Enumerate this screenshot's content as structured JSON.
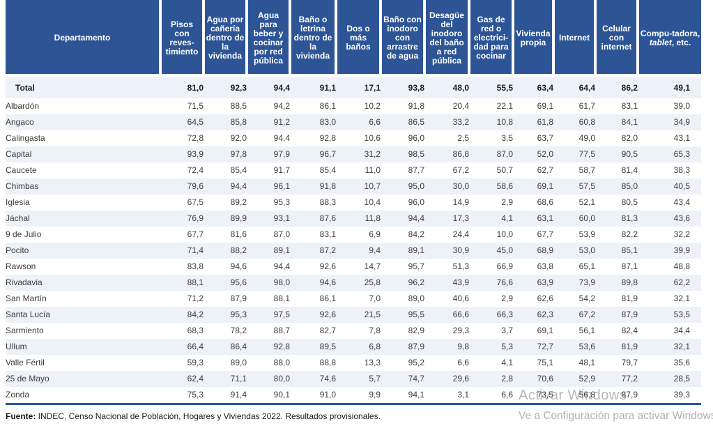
{
  "colors": {
    "header_bg": "#2D5596",
    "row_alt_bg": "#EDF1F8",
    "table_border": "#2A57A5",
    "watermark_gray": "#7A7A7A"
  },
  "table": {
    "columns": [
      {
        "label": "Departamento"
      },
      {
        "label": "Pisos con reves-timiento"
      },
      {
        "label": "Agua por cañería dentro de la vivienda"
      },
      {
        "label": "Agua para beber y cocinar por red pública"
      },
      {
        "label": "Baño o letrina dentro de la vivienda"
      },
      {
        "label": "Dos o más baños"
      },
      {
        "label": "Baño con inodoro con arrastre de agua"
      },
      {
        "label": "Desagüe del inodoro del baño a red pública"
      },
      {
        "label": "Gas de red o electrici-dad para cocinar"
      },
      {
        "label": "Vivienda propia"
      },
      {
        "label": "Internet"
      },
      {
        "label": "Celular con internet"
      },
      {
        "label_before": "Compu-tadora, ",
        "label_italic": "tablet",
        "label_after": ", etc."
      }
    ],
    "rows": [
      {
        "name": "Total",
        "bold": true,
        "values": [
          "81,0",
          "92,3",
          "94,4",
          "91,1",
          "17,1",
          "93,8",
          "48,0",
          "55,5",
          "63,4",
          "64,4",
          "86,2",
          "49,1"
        ]
      },
      {
        "name": "Albardón",
        "values": [
          "71,5",
          "88,5",
          "94,2",
          "86,1",
          "10,2",
          "91,8",
          "20,4",
          "22,1",
          "69,1",
          "61,7",
          "83,1",
          "39,0"
        ]
      },
      {
        "name": "Angaco",
        "values": [
          "64,5",
          "85,8",
          "91,2",
          "83,0",
          "6,6",
          "86,5",
          "33,2",
          "10,8",
          "61,8",
          "60,8",
          "84,1",
          "34,9"
        ]
      },
      {
        "name": "Calingasta",
        "values": [
          "72,8",
          "92,0",
          "94,4",
          "92,8",
          "10,6",
          "96,0",
          "2,5",
          "3,5",
          "63,7",
          "49,0",
          "82,0",
          "43,1"
        ]
      },
      {
        "name": "Capital",
        "values": [
          "93,9",
          "97,8",
          "97,9",
          "96,7",
          "31,2",
          "98,5",
          "86,8",
          "87,0",
          "52,0",
          "77,5",
          "90,5",
          "65,3"
        ]
      },
      {
        "name": "Caucete",
        "values": [
          "72,4",
          "85,4",
          "91,7",
          "85,4",
          "11,0",
          "87,7",
          "67,2",
          "50,7",
          "62,7",
          "58,7",
          "81,4",
          "38,3"
        ]
      },
      {
        "name": "Chimbas",
        "values": [
          "79,6",
          "94,4",
          "96,1",
          "91,8",
          "10,7",
          "95,0",
          "30,0",
          "58,6",
          "69,1",
          "57,5",
          "85,0",
          "40,5"
        ]
      },
      {
        "name": "Iglesia",
        "values": [
          "67,5",
          "89,2",
          "95,3",
          "88,3",
          "10,4",
          "96,0",
          "14,9",
          "2,9",
          "68,6",
          "52,1",
          "80,5",
          "43,4"
        ]
      },
      {
        "name": "Jáchal",
        "values": [
          "76,9",
          "89,9",
          "93,1",
          "87,6",
          "11,8",
          "94,4",
          "17,3",
          "4,1",
          "63,1",
          "60,0",
          "81,3",
          "43,6"
        ]
      },
      {
        "name": "9 de Julio",
        "values": [
          "67,7",
          "81,6",
          "87,0",
          "83,1",
          "6,9",
          "84,2",
          "24,4",
          "10,0",
          "67,7",
          "53,9",
          "82,2",
          "32,2"
        ]
      },
      {
        "name": "Pocito",
        "values": [
          "71,4",
          "88,2",
          "89,1",
          "87,2",
          "9,4",
          "89,1",
          "30,9",
          "45,0",
          "68,9",
          "53,0",
          "85,1",
          "39,9"
        ]
      },
      {
        "name": "Rawson",
        "values": [
          "83,8",
          "94,6",
          "94,4",
          "92,6",
          "14,7",
          "95,7",
          "51,3",
          "66,9",
          "63,8",
          "65,1",
          "87,1",
          "48,8"
        ]
      },
      {
        "name": "Rivadavia",
        "values": [
          "88,1",
          "95,6",
          "98,0",
          "94,6",
          "25,8",
          "96,2",
          "43,9",
          "76,6",
          "63,9",
          "73,9",
          "89,8",
          "62,2"
        ]
      },
      {
        "name": "San Martín",
        "values": [
          "71,2",
          "87,9",
          "88,1",
          "86,1",
          "7,0",
          "89,0",
          "40,6",
          "2,9",
          "62,6",
          "54,2",
          "81,9",
          "32,1"
        ]
      },
      {
        "name": "Santa Lucía",
        "values": [
          "84,2",
          "95,3",
          "97,5",
          "92,6",
          "21,5",
          "95,5",
          "66,6",
          "66,3",
          "62,3",
          "67,2",
          "87,9",
          "53,5"
        ]
      },
      {
        "name": "Sarmiento",
        "values": [
          "68,3",
          "78,2",
          "88,7",
          "82,7",
          "7,8",
          "82,9",
          "29,3",
          "3,7",
          "69,1",
          "56,1",
          "82,4",
          "34,4"
        ]
      },
      {
        "name": "Ullum",
        "values": [
          "66,4",
          "86,4",
          "92,8",
          "89,5",
          "6,8",
          "87,9",
          "9,8",
          "5,3",
          "72,7",
          "53,6",
          "81,9",
          "32,1"
        ]
      },
      {
        "name": "Valle Fértil",
        "values": [
          "59,3",
          "89,0",
          "88,0",
          "88,8",
          "13,3",
          "95,2",
          "6,6",
          "4,1",
          "75,1",
          "48,1",
          "79,7",
          "35,6"
        ]
      },
      {
        "name": "25 de Mayo",
        "values": [
          "62,4",
          "71,1",
          "80,0",
          "74,6",
          "5,7",
          "74,7",
          "29,6",
          "2,8",
          "70,6",
          "52,9",
          "77,2",
          "28,5"
        ]
      },
      {
        "name": "Zonda",
        "values": [
          "75,3",
          "91,4",
          "90,1",
          "91,0",
          "9,9",
          "94,1",
          "3,1",
          "6,6",
          "73,5",
          "56,8",
          "87,9",
          "39,3"
        ]
      }
    ]
  },
  "footer": {
    "source_label": "Fuente:",
    "source_text": " INDEC, Censo Nacional de Población, Hogares y Viviendas 2022. Resultados provisionales."
  },
  "watermark": {
    "line1": "Activar Windows",
    "line2": "Ve a Configuración para activar Windows."
  }
}
